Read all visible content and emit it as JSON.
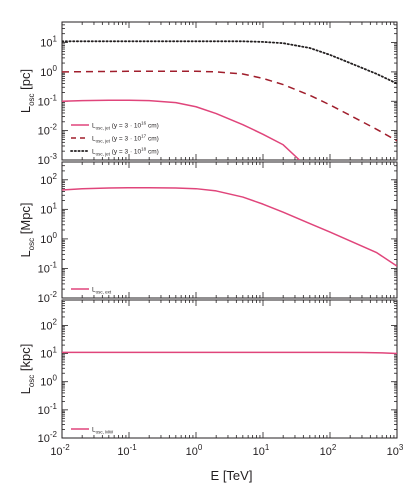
{
  "colors": {
    "pink": "#e0457b",
    "darkred": "#a01e2c",
    "black": "#231f20",
    "axis": "#231f20"
  },
  "chart_data": [
    {
      "type": "line",
      "panel": "top",
      "xscale": "log",
      "yscale": "log",
      "xlim": [
        0.01,
        1000
      ],
      "ylim": [
        0.001,
        50
      ],
      "yticks": [
        {
          "base": "10",
          "exp": "1"
        },
        {
          "base": "10",
          "exp": "0"
        },
        {
          "base": "10",
          "exp": "-1"
        },
        {
          "base": "10",
          "exp": "-2"
        },
        {
          "base": "10",
          "exp": "-3"
        }
      ],
      "ylabel": {
        "main": "L",
        "sub": "osc",
        "unit": "[pc]"
      },
      "legend_position": "bottom-left",
      "series": [
        {
          "style": "solid",
          "color": "#e0457b",
          "legend": {
            "main": "L",
            "sub": "osc, jet",
            "text": "(y = 3 · 10",
            "exp": "16",
            "end": " cm)"
          },
          "x": [
            0.01,
            0.02,
            0.05,
            0.1,
            0.2,
            0.5,
            1,
            2,
            5,
            10,
            20,
            35
          ],
          "y": [
            0.1,
            0.105,
            0.108,
            0.108,
            0.105,
            0.09,
            0.065,
            0.038,
            0.016,
            0.0075,
            0.0033,
            0.001
          ]
        },
        {
          "style": "dashed",
          "color": "#a01e2c",
          "legend": {
            "main": "L",
            "sub": "osc, jet",
            "text": "(y = 3 · 10",
            "exp": "17",
            "end": " cm)"
          },
          "x": [
            0.01,
            0.1,
            1,
            2,
            5,
            10,
            20,
            50,
            100,
            200,
            500,
            1000
          ],
          "y": [
            1.0,
            1.05,
            1.05,
            1.0,
            0.85,
            0.6,
            0.37,
            0.16,
            0.075,
            0.033,
            0.011,
            0.0045
          ]
        },
        {
          "style": "dotted",
          "color": "#231f20",
          "legend": {
            "main": "L",
            "sub": "osc, jet",
            "text": "(y = 3 · 10",
            "exp": "18",
            "end": " cm)"
          },
          "x": [
            0.01,
            0.1,
            1,
            5,
            10,
            20,
            50,
            100,
            200,
            500,
            1000
          ],
          "y": [
            11,
            11,
            11,
            11,
            10.5,
            9.5,
            6.5,
            3.8,
            2.0,
            0.85,
            0.4
          ]
        }
      ]
    },
    {
      "type": "line",
      "panel": "middle",
      "xscale": "log",
      "yscale": "log",
      "xlim": [
        0.01,
        1000
      ],
      "ylim": [
        0.01,
        400
      ],
      "yticks": [
        {
          "base": "10",
          "exp": "2"
        },
        {
          "base": "10",
          "exp": "1"
        },
        {
          "base": "10",
          "exp": "0"
        },
        {
          "base": "10",
          "exp": "-1"
        },
        {
          "base": "10",
          "exp": "-2"
        }
      ],
      "ylabel": {
        "main": "L",
        "sub": "osc",
        "unit": "[Mpc]"
      },
      "legend_position": "bottom-left",
      "series": [
        {
          "style": "solid",
          "color": "#e0457b",
          "legend": {
            "main": "L",
            "sub": "osc, ext",
            "text": "",
            "exp": "",
            "end": ""
          },
          "x": [
            0.01,
            0.02,
            0.05,
            0.1,
            0.2,
            0.5,
            1,
            2,
            5,
            10,
            20,
            50,
            100,
            200,
            500,
            1000
          ],
          "y": [
            45,
            50,
            53,
            54,
            54,
            53,
            50,
            42,
            26,
            15,
            8,
            3.3,
            1.7,
            0.85,
            0.34,
            0.12
          ]
        }
      ]
    },
    {
      "type": "line",
      "panel": "bottom",
      "xscale": "log",
      "yscale": "log",
      "xlim": [
        0.01,
        1000
      ],
      "ylim": [
        0.01,
        800
      ],
      "yticks": [
        {
          "base": "10",
          "exp": "2"
        },
        {
          "base": "10",
          "exp": "1"
        },
        {
          "base": "10",
          "exp": "0"
        },
        {
          "base": "10",
          "exp": "-1"
        },
        {
          "base": "10",
          "exp": "-2"
        }
      ],
      "ylabel": {
        "main": "L",
        "sub": "osc",
        "unit": "[kpc]"
      },
      "legend_position": "bottom-left",
      "xticks": [
        {
          "base": "10",
          "exp": "-2"
        },
        {
          "base": "10",
          "exp": "-1"
        },
        {
          "base": "10",
          "exp": "0"
        },
        {
          "base": "10",
          "exp": "1"
        },
        {
          "base": "10",
          "exp": "2"
        },
        {
          "base": "10",
          "exp": "3"
        }
      ],
      "xlabel": "E [TeV]",
      "series": [
        {
          "style": "solid",
          "color": "#e0457b",
          "legend": {
            "main": "L",
            "sub": "osc, MW",
            "text": "",
            "exp": "",
            "end": ""
          },
          "x": [
            0.01,
            0.1,
            1,
            10,
            100,
            300,
            600,
            1000
          ],
          "y": [
            11,
            11,
            11,
            11,
            11,
            10.9,
            10.6,
            10
          ]
        }
      ]
    }
  ]
}
